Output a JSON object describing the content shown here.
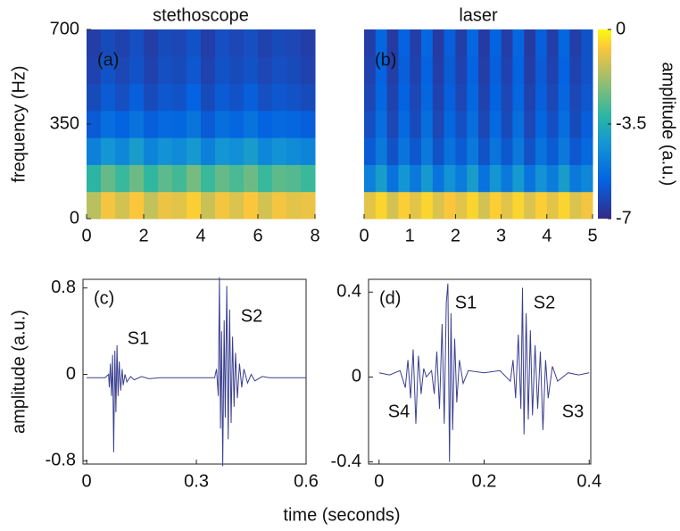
{
  "xlabel": "time (seconds)",
  "chart_data": [
    {
      "type": "heatmap",
      "title": "stethoscope",
      "label": "(a)",
      "ylabel": "frequency (Hz)",
      "xlim": [
        0,
        8
      ],
      "xticks": [
        0,
        2,
        4,
        6,
        8
      ],
      "ylim": [
        0,
        700
      ],
      "yticks": [
        0,
        350,
        700
      ],
      "z": [
        [
          -1.5,
          -0.8,
          -1.2,
          -0.7,
          -1.4,
          -0.9,
          -1.0,
          -0.6,
          -1.3,
          -0.8,
          -1.1,
          -0.7,
          -1.2,
          -0.8,
          -1.0,
          -0.9
        ],
        [
          -3.2,
          -2.5,
          -3.0,
          -2.4,
          -3.1,
          -2.6,
          -2.9,
          -2.3,
          -3.0,
          -2.5,
          -2.8,
          -2.4,
          -3.0,
          -2.6,
          -2.7,
          -3.0
        ],
        [
          -4.8,
          -4.2,
          -4.6,
          -4.0,
          -4.7,
          -4.3,
          -4.5,
          -4.1,
          -4.8,
          -4.2,
          -4.4,
          -4.0,
          -4.6,
          -4.3,
          -4.5,
          -4.7
        ],
        [
          -5.8,
          -5.3,
          -5.6,
          -5.2,
          -5.7,
          -5.4,
          -5.5,
          -5.1,
          -5.8,
          -5.3,
          -5.5,
          -5.2,
          -5.6,
          -5.4,
          -5.5,
          -5.7
        ],
        [
          -6.2,
          -5.8,
          -6.1,
          -5.7,
          -6.2,
          -5.9,
          -6.0,
          -5.6,
          -6.2,
          -5.8,
          -6.0,
          -5.7,
          -6.1,
          -5.9,
          -6.0,
          -6.2
        ],
        [
          -6.4,
          -6.0,
          -6.3,
          -6.0,
          -6.4,
          -6.1,
          -6.2,
          -5.9,
          -6.4,
          -6.0,
          -6.2,
          -6.0,
          -6.3,
          -6.1,
          -6.2,
          -6.4
        ],
        [
          -6.5,
          -6.2,
          -6.4,
          -6.1,
          -6.5,
          -6.2,
          -6.3,
          -6.0,
          -6.5,
          -6.1,
          -6.3,
          -6.1,
          -6.4,
          -6.2,
          -6.3,
          -6.5
        ]
      ]
    },
    {
      "type": "heatmap",
      "title": "laser",
      "label": "(b)",
      "xlim": [
        0,
        5
      ],
      "xticks": [
        0,
        1,
        2,
        3,
        4,
        5
      ],
      "ylim": [
        0,
        700
      ],
      "clim": [
        -7,
        0
      ],
      "cticks": [
        -7,
        -3.5,
        0
      ],
      "clabel": "amplitude (a.u.)",
      "z": [
        [
          -1.0,
          -0.5,
          -1.2,
          -0.6,
          -1.0,
          -0.5,
          -1.1,
          -0.7,
          -1.0,
          -0.5,
          -1.2,
          -0.6,
          -1.0,
          -0.5,
          -1.1,
          -0.6,
          -1.0,
          -0.5,
          -1.1,
          -0.8
        ],
        [
          -4.8,
          -4.0,
          -5.2,
          -4.2,
          -5.0,
          -4.1,
          -5.1,
          -4.3,
          -4.9,
          -4.0,
          -5.2,
          -4.2,
          -5.0,
          -4.1,
          -5.1,
          -4.3,
          -4.9,
          -4.0,
          -5.0,
          -4.6
        ],
        [
          -5.8,
          -5.0,
          -6.0,
          -5.1,
          -5.9,
          -5.0,
          -6.0,
          -5.2,
          -5.8,
          -5.0,
          -6.0,
          -5.1,
          -5.9,
          -5.0,
          -6.0,
          -5.2,
          -5.8,
          -5.0,
          -5.9,
          -5.4
        ],
        [
          -6.1,
          -5.3,
          -6.3,
          -5.4,
          -6.2,
          -5.3,
          -6.3,
          -5.5,
          -6.1,
          -5.3,
          -6.3,
          -5.4,
          -6.2,
          -5.3,
          -6.3,
          -5.5,
          -6.1,
          -5.3,
          -6.2,
          -5.7
        ],
        [
          -6.3,
          -5.5,
          -6.4,
          -5.6,
          -6.3,
          -5.5,
          -6.4,
          -5.7,
          -6.3,
          -5.5,
          -6.4,
          -5.6,
          -6.3,
          -5.5,
          -6.4,
          -5.7,
          -6.3,
          -5.5,
          -6.3,
          -5.9
        ],
        [
          -6.4,
          -5.6,
          -6.5,
          -5.7,
          -6.4,
          -5.6,
          -6.5,
          -5.8,
          -6.4,
          -5.6,
          -6.5,
          -5.7,
          -6.4,
          -5.6,
          -6.5,
          -5.8,
          -6.4,
          -5.6,
          -6.4,
          -6.0
        ],
        [
          -6.5,
          -5.5,
          -6.6,
          -5.6,
          -6.5,
          -5.5,
          -6.6,
          -5.7,
          -6.5,
          -5.5,
          -6.6,
          -5.6,
          -6.5,
          -5.5,
          -6.6,
          -5.7,
          -6.5,
          -5.5,
          -6.5,
          -6.0
        ]
      ]
    },
    {
      "type": "line",
      "label": "(c)",
      "ylabel": "amplitude (a.u.)",
      "color": "#3a3f8f",
      "xlim": [
        -0.01,
        0.6
      ],
      "xticks": [
        0,
        0.3,
        0.6
      ],
      "ylim": [
        -0.83,
        0.88
      ],
      "yticks": [
        -0.8,
        0,
        0.8
      ],
      "annotations": [
        "S1",
        "S2"
      ],
      "x": [
        0,
        0.05,
        0.06,
        0.062,
        0.065,
        0.068,
        0.071,
        0.074,
        0.077,
        0.08,
        0.083,
        0.086,
        0.089,
        0.093,
        0.097,
        0.1,
        0.105,
        0.11,
        0.12,
        0.13,
        0.15,
        0.17,
        0.2,
        0.35,
        0.355,
        0.36,
        0.363,
        0.366,
        0.369,
        0.372,
        0.376,
        0.379,
        0.383,
        0.387,
        0.391,
        0.395,
        0.399,
        0.403,
        0.407,
        0.412,
        0.418,
        0.424,
        0.43,
        0.44,
        0.45,
        0.46,
        0.48,
        0.5,
        0.6
      ],
      "values": [
        -0.03,
        -0.03,
        0.0,
        -0.12,
        0.1,
        -0.2,
        0.18,
        -0.72,
        0.22,
        -0.35,
        0.27,
        -0.2,
        0.12,
        -0.15,
        0.05,
        -0.1,
        0.0,
        -0.07,
        -0.02,
        -0.05,
        -0.02,
        -0.04,
        -0.03,
        -0.03,
        0.05,
        -0.2,
        0.9,
        -0.5,
        0.4,
        -0.85,
        0.5,
        -0.4,
        0.82,
        -0.6,
        0.6,
        -0.45,
        0.35,
        -0.3,
        0.2,
        -0.22,
        0.1,
        -0.12,
        0.05,
        -0.08,
        0.0,
        -0.06,
        -0.02,
        -0.03,
        -0.03
      ]
    },
    {
      "type": "line",
      "label": "(d)",
      "color": "#3a3f8f",
      "xlim": [
        -0.02,
        0.403
      ],
      "xticks": [
        0,
        0.2,
        0.4
      ],
      "ylim": [
        -0.41,
        0.46
      ],
      "yticks": [
        -0.4,
        0,
        0.4
      ],
      "annotations": [
        "S1",
        "S2",
        "S3",
        "S4"
      ],
      "x": [
        0,
        0.02,
        0.04,
        0.05,
        0.055,
        0.06,
        0.065,
        0.07,
        0.075,
        0.08,
        0.085,
        0.09,
        0.1,
        0.105,
        0.11,
        0.115,
        0.12,
        0.124,
        0.128,
        0.131,
        0.134,
        0.137,
        0.14,
        0.144,
        0.148,
        0.153,
        0.16,
        0.17,
        0.2,
        0.23,
        0.25,
        0.255,
        0.26,
        0.265,
        0.27,
        0.273,
        0.276,
        0.28,
        0.284,
        0.288,
        0.292,
        0.297,
        0.302,
        0.307,
        0.312,
        0.317,
        0.322,
        0.33,
        0.34,
        0.36,
        0.38,
        0.4
      ],
      "values": [
        0.02,
        0.01,
        0.03,
        -0.05,
        0.08,
        -0.1,
        0.13,
        -0.22,
        0.1,
        -0.08,
        0.04,
        0.0,
        0.03,
        -0.08,
        0.12,
        -0.15,
        0.25,
        -0.22,
        0.35,
        0.44,
        -0.4,
        0.3,
        -0.25,
        0.18,
        -0.12,
        0.08,
        -0.03,
        0.03,
        0.02,
        0.03,
        -0.02,
        0.08,
        -0.1,
        0.2,
        -0.15,
        0.42,
        -0.27,
        0.3,
        -0.2,
        0.22,
        -0.18,
        0.15,
        -0.15,
        0.12,
        -0.25,
        0.08,
        -0.1,
        0.05,
        -0.02,
        0.02,
        0.01,
        0.02
      ]
    }
  ]
}
